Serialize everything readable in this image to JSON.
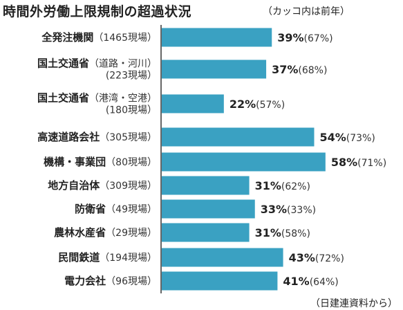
{
  "title": "時間外労働上限規制の超過状況",
  "subtitle": "（カッコ内は前年）",
  "source": "（日建連資料から）",
  "colors": {
    "bar": "#3aa1c2",
    "axis": "#666666"
  },
  "chart_data": {
    "type": "bar",
    "orientation": "horizontal",
    "xlim": [
      0,
      60
    ],
    "unit": "%",
    "categories": [
      {
        "name": "全発注機関",
        "count_lines": [
          "（1465現場）"
        ]
      },
      {
        "name": "国土交通省",
        "count_lines": [
          "（道路・河川）",
          "(223現場）"
        ]
      },
      {
        "name": "国土交通省",
        "count_lines": [
          "（港湾・空港）",
          "(180現場）"
        ]
      },
      {
        "name": "高速道路会社",
        "count_lines": [
          "（305現場）"
        ]
      },
      {
        "name": "機構・事業団",
        "count_lines": [
          "（80現場）"
        ]
      },
      {
        "name": "地方自治体",
        "count_lines": [
          "（309現場）"
        ]
      },
      {
        "name": "防衛省",
        "count_lines": [
          "（49現場）"
        ]
      },
      {
        "name": "農林水産省",
        "count_lines": [
          "（29現場）"
        ]
      },
      {
        "name": "民間鉄道",
        "count_lines": [
          "（194現場）"
        ]
      },
      {
        "name": "電力会社",
        "count_lines": [
          "（96現場）"
        ]
      }
    ],
    "values": [
      39,
      37,
      22,
      54,
      58,
      31,
      33,
      31,
      43,
      41
    ],
    "previous_year": [
      67,
      68,
      57,
      73,
      71,
      62,
      33,
      58,
      72,
      64
    ]
  }
}
